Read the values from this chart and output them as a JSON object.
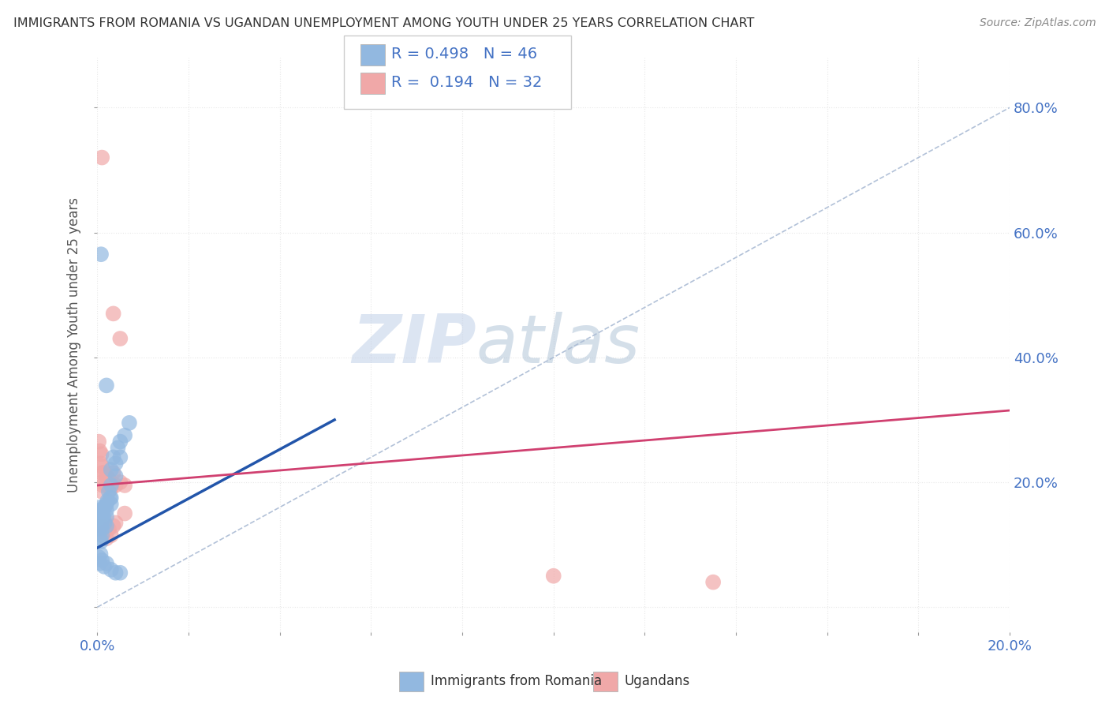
{
  "title": "IMMIGRANTS FROM ROMANIA VS UGANDAN UNEMPLOYMENT AMONG YOUTH UNDER 25 YEARS CORRELATION CHART",
  "source": "Source: ZipAtlas.com",
  "ylabel": "Unemployment Among Youth under 25 years",
  "xlim": [
    0.0,
    0.2
  ],
  "ylim": [
    -0.04,
    0.88
  ],
  "xticks": [
    0.0,
    0.02,
    0.04,
    0.06,
    0.08,
    0.1,
    0.12,
    0.14,
    0.16,
    0.18,
    0.2
  ],
  "ytick_positions": [
    0.0,
    0.2,
    0.4,
    0.6,
    0.8
  ],
  "ytick_labels": [
    "",
    "20.0%",
    "40.0%",
    "60.0%",
    "80.0%"
  ],
  "xtick_labels": [
    "0.0%",
    "",
    "",
    "",
    "",
    "",
    "",
    "",
    "",
    "",
    "20.0%"
  ],
  "blue_color": "#92b8e0",
  "pink_color": "#f0a8a8",
  "blue_line_color": "#2255aa",
  "pink_line_color": "#d04070",
  "dashed_line_color": "#aabbd4",
  "legend_R_blue": "0.498",
  "legend_N_blue": "46",
  "legend_R_pink": "0.194",
  "legend_N_pink": "32",
  "watermark_zip": "ZIP",
  "watermark_atlas": "atlas",
  "blue_line": [
    [
      0.0,
      0.095
    ],
    [
      0.052,
      0.3
    ]
  ],
  "pink_line": [
    [
      0.0,
      0.195
    ],
    [
      0.2,
      0.315
    ]
  ],
  "dashed_line": [
    [
      0.0,
      0.0
    ],
    [
      0.2,
      0.8
    ]
  ],
  "blue_points": [
    [
      0.0002,
      0.155
    ],
    [
      0.0003,
      0.135
    ],
    [
      0.0004,
      0.125
    ],
    [
      0.0005,
      0.145
    ],
    [
      0.0006,
      0.11
    ],
    [
      0.0007,
      0.16
    ],
    [
      0.0008,
      0.105
    ],
    [
      0.0009,
      0.13
    ],
    [
      0.001,
      0.15
    ],
    [
      0.001,
      0.125
    ],
    [
      0.001,
      0.14
    ],
    [
      0.001,
      0.115
    ],
    [
      0.0012,
      0.155
    ],
    [
      0.0013,
      0.145
    ],
    [
      0.0015,
      0.16
    ],
    [
      0.0016,
      0.135
    ],
    [
      0.002,
      0.145
    ],
    [
      0.002,
      0.165
    ],
    [
      0.002,
      0.13
    ],
    [
      0.002,
      0.155
    ],
    [
      0.0022,
      0.17
    ],
    [
      0.0025,
      0.185
    ],
    [
      0.0028,
      0.175
    ],
    [
      0.003,
      0.175
    ],
    [
      0.003,
      0.22
    ],
    [
      0.003,
      0.195
    ],
    [
      0.003,
      0.165
    ],
    [
      0.0035,
      0.24
    ],
    [
      0.004,
      0.21
    ],
    [
      0.004,
      0.23
    ],
    [
      0.0045,
      0.255
    ],
    [
      0.005,
      0.265
    ],
    [
      0.005,
      0.24
    ],
    [
      0.006,
      0.275
    ],
    [
      0.007,
      0.295
    ],
    [
      0.0008,
      0.565
    ],
    [
      0.002,
      0.355
    ],
    [
      0.0003,
      0.08
    ],
    [
      0.0005,
      0.07
    ],
    [
      0.0007,
      0.085
    ],
    [
      0.001,
      0.075
    ],
    [
      0.0015,
      0.065
    ],
    [
      0.002,
      0.07
    ],
    [
      0.003,
      0.06
    ],
    [
      0.004,
      0.055
    ],
    [
      0.005,
      0.055
    ]
  ],
  "pink_points": [
    [
      0.0003,
      0.265
    ],
    [
      0.0005,
      0.25
    ],
    [
      0.0007,
      0.23
    ],
    [
      0.0009,
      0.245
    ],
    [
      0.001,
      0.215
    ],
    [
      0.001,
      0.2
    ],
    [
      0.001,
      0.225
    ],
    [
      0.001,
      0.185
    ],
    [
      0.0012,
      0.195
    ],
    [
      0.0015,
      0.215
    ],
    [
      0.002,
      0.21
    ],
    [
      0.002,
      0.195
    ],
    [
      0.0025,
      0.205
    ],
    [
      0.003,
      0.2
    ],
    [
      0.003,
      0.19
    ],
    [
      0.0035,
      0.215
    ],
    [
      0.004,
      0.195
    ],
    [
      0.005,
      0.2
    ],
    [
      0.006,
      0.195
    ],
    [
      0.001,
      0.72
    ],
    [
      0.0035,
      0.47
    ],
    [
      0.005,
      0.43
    ],
    [
      0.001,
      0.13
    ],
    [
      0.0015,
      0.12
    ],
    [
      0.002,
      0.11
    ],
    [
      0.0025,
      0.125
    ],
    [
      0.003,
      0.115
    ],
    [
      0.0035,
      0.13
    ],
    [
      0.004,
      0.135
    ],
    [
      0.006,
      0.15
    ],
    [
      0.1,
      0.05
    ],
    [
      0.135,
      0.04
    ]
  ],
  "background_color": "#ffffff",
  "grid_color": "#e8e8e8"
}
